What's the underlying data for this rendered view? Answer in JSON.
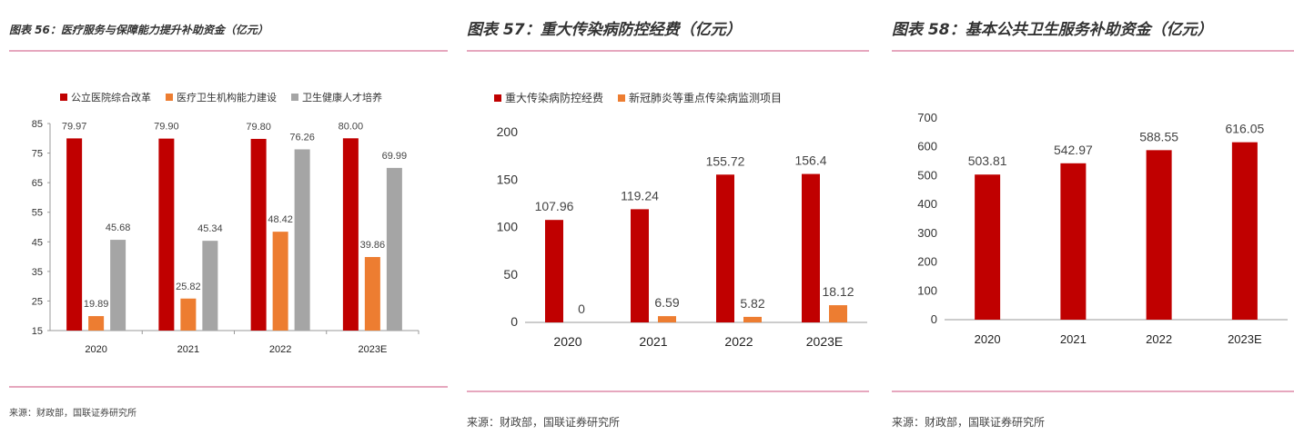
{
  "charts": [
    {
      "title": "图表 56：医疗服务与保障能力提升补助资金（亿元）",
      "source": "来源：财政部，国联证券研究所",
      "chart_data": {
        "type": "bar",
        "categories": [
          "2020",
          "2021",
          "2022",
          "2023E"
        ],
        "series": [
          {
            "name": "公立医院综合改革",
            "color": "#c00000",
            "values": [
              79.97,
              79.9,
              79.8,
              80.0
            ],
            "labels": [
              "79.97",
              "79.90",
              "79.80",
              "80.00"
            ]
          },
          {
            "name": "医疗卫生机构能力建设",
            "color": "#ed7d31",
            "values": [
              19.89,
              25.82,
              48.42,
              39.86
            ],
            "labels": [
              "19.89",
              "25.82",
              "48.42",
              "39.86"
            ]
          },
          {
            "name": "卫生健康人才培养",
            "color": "#a5a5a5",
            "values": [
              45.68,
              45.34,
              76.26,
              69.99
            ],
            "labels": [
              "45.68",
              "45.34",
              "76.26",
              "69.99"
            ]
          }
        ],
        "ylim": [
          15,
          85
        ],
        "yticks": [
          "15",
          "25",
          "35",
          "45",
          "55",
          "65",
          "75",
          "85"
        ],
        "grid": false,
        "legend": "top"
      }
    },
    {
      "title": "图表 57：重大传染病防控经费（亿元）",
      "source": "来源：财政部，国联证券研究所",
      "chart_data": {
        "type": "bar",
        "categories": [
          "2020",
          "2021",
          "2022",
          "2023E"
        ],
        "series": [
          {
            "name": "重大传染病防控经费",
            "color": "#c00000",
            "values": [
              107.96,
              119.24,
              155.72,
              156.4
            ],
            "labels": [
              "107.96",
              "119.24",
              "155.72",
              "156.4"
            ]
          },
          {
            "name": "新冠肺炎等重点传染病监测项目",
            "color": "#ed7d31",
            "values": [
              0,
              6.59,
              5.82,
              18.12
            ],
            "labels": [
              "0",
              "6.59",
              "5.82",
              "18.12"
            ]
          }
        ],
        "ylim": [
          0,
          200
        ],
        "yticks": [
          "0",
          "50",
          "100",
          "150",
          "200"
        ],
        "grid": false,
        "legend": "top"
      }
    },
    {
      "title": "图表 58：基本公共卫生服务补助资金（亿元）",
      "source": "来源：财政部，国联证券研究所",
      "chart_data": {
        "type": "bar",
        "categories": [
          "2020",
          "2021",
          "2022",
          "2023E"
        ],
        "series": [
          {
            "color": "#c00000",
            "values": [
              503.81,
              542.97,
              588.55,
              616.05
            ],
            "labels": [
              "503.81",
              "542.97",
              "588.55",
              "616.05"
            ]
          }
        ],
        "ylim": [
          0,
          700
        ],
        "yticks": [
          "0",
          "100",
          "200",
          "300",
          "400",
          "500",
          "600",
          "700"
        ],
        "grid": false
      }
    }
  ]
}
